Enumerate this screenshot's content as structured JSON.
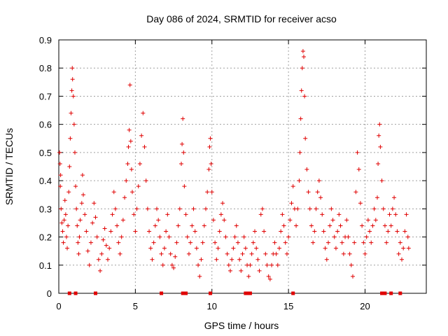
{
  "chart_data": {
    "type": "scatter",
    "title": "Day 086 of 2024, SRMTID for receiver acso",
    "xlabel": "GPS time / hours",
    "ylabel": "SRMTID / TECUs",
    "xlim": [
      0,
      24
    ],
    "ylim": [
      0,
      0.9
    ],
    "xticks": [
      0,
      5,
      10,
      15,
      20
    ],
    "xtick_labels": [
      "0",
      "5",
      "10",
      "15",
      "20"
    ],
    "yticks": [
      0,
      0.1,
      0.2,
      0.3,
      0.4,
      0.5,
      0.6,
      0.7,
      0.8,
      0.9
    ],
    "ytick_labels": [
      "0",
      "0.1",
      "0.2",
      "0.3",
      "0.4",
      "0.5",
      "0.6",
      "0.7",
      "0.8",
      "0.9"
    ],
    "grid": true,
    "marker": "+",
    "color": "#e00000",
    "series": [
      {
        "name": "SRMTID",
        "points": [
          [
            0.05,
            0.5
          ],
          [
            0.08,
            0.46
          ],
          [
            0.1,
            0.38
          ],
          [
            0.12,
            0.42
          ],
          [
            0.15,
            0.3
          ],
          [
            0.2,
            0.25
          ],
          [
            0.25,
            0.22
          ],
          [
            0.3,
            0.18
          ],
          [
            0.35,
            0.26
          ],
          [
            0.4,
            0.33
          ],
          [
            0.45,
            0.28
          ],
          [
            0.5,
            0.2
          ],
          [
            0.55,
            0.16
          ],
          [
            0.6,
            0.24
          ],
          [
            0.65,
            0.36
          ],
          [
            0.7,
            0.45
          ],
          [
            0.75,
            0.55
          ],
          [
            0.8,
            0.64
          ],
          [
            0.85,
            0.72
          ],
          [
            0.88,
            0.8
          ],
          [
            0.9,
            0.76
          ],
          [
            0.95,
            0.7
          ],
          [
            1.0,
            0.6
          ],
          [
            1.05,
            0.5
          ],
          [
            1.1,
            0.38
          ],
          [
            1.15,
            0.3
          ],
          [
            1.2,
            0.24
          ],
          [
            1.25,
            0.18
          ],
          [
            1.3,
            0.14
          ],
          [
            1.35,
            0.2
          ],
          [
            1.4,
            0.26
          ],
          [
            1.5,
            0.32
          ],
          [
            1.55,
            0.42
          ],
          [
            1.6,
            0.35
          ],
          [
            1.7,
            0.28
          ],
          [
            1.8,
            0.22
          ],
          [
            1.9,
            0.15
          ],
          [
            2.0,
            0.1
          ],
          [
            2.1,
            0.18
          ],
          [
            2.2,
            0.25
          ],
          [
            2.3,
            0.32
          ],
          [
            2.4,
            0.27
          ],
          [
            2.5,
            0.2
          ],
          [
            2.6,
            0.12
          ],
          [
            2.7,
            0.08
          ],
          [
            2.8,
            0.14
          ],
          [
            2.9,
            0.19
          ],
          [
            3.0,
            0.23
          ],
          [
            3.1,
            0.17
          ],
          [
            3.2,
            0.12
          ],
          [
            3.3,
            0.16
          ],
          [
            3.4,
            0.22
          ],
          [
            3.5,
            0.28
          ],
          [
            3.6,
            0.36
          ],
          [
            3.7,
            0.3
          ],
          [
            3.8,
            0.24
          ],
          [
            3.9,
            0.18
          ],
          [
            4.0,
            0.14
          ],
          [
            4.1,
            0.2
          ],
          [
            4.2,
            0.26
          ],
          [
            4.3,
            0.34
          ],
          [
            4.4,
            0.4
          ],
          [
            4.5,
            0.46
          ],
          [
            4.55,
            0.52
          ],
          [
            4.6,
            0.58
          ],
          [
            4.65,
            0.74
          ],
          [
            4.7,
            0.54
          ],
          [
            4.75,
            0.44
          ],
          [
            4.8,
            0.36
          ],
          [
            4.9,
            0.28
          ],
          [
            5.0,
            0.22
          ],
          [
            5.1,
            0.3
          ],
          [
            5.2,
            0.38
          ],
          [
            5.3,
            0.46
          ],
          [
            5.4,
            0.56
          ],
          [
            5.5,
            0.64
          ],
          [
            5.6,
            0.52
          ],
          [
            5.7,
            0.4
          ],
          [
            5.8,
            0.3
          ],
          [
            5.9,
            0.22
          ],
          [
            6.0,
            0.16
          ],
          [
            6.1,
            0.12
          ],
          [
            6.2,
            0.18
          ],
          [
            6.3,
            0.24
          ],
          [
            6.4,
            0.3
          ],
          [
            6.5,
            0.26
          ],
          [
            6.6,
            0.2
          ],
          [
            6.7,
            0.14
          ],
          [
            6.8,
            0.1
          ],
          [
            6.9,
            0.16
          ],
          [
            7.0,
            0.22
          ],
          [
            7.1,
            0.28
          ],
          [
            7.2,
            0.2
          ],
          [
            7.3,
            0.14
          ],
          [
            7.4,
            0.1
          ],
          [
            7.5,
            0.09
          ],
          [
            7.6,
            0.13
          ],
          [
            7.7,
            0.18
          ],
          [
            7.8,
            0.24
          ],
          [
            7.9,
            0.3
          ],
          [
            8.0,
            0.46
          ],
          [
            8.05,
            0.53
          ],
          [
            8.1,
            0.62
          ],
          [
            8.15,
            0.5
          ],
          [
            8.2,
            0.38
          ],
          [
            8.3,
            0.28
          ],
          [
            8.4,
            0.2
          ],
          [
            8.5,
            0.14
          ],
          [
            8.6,
            0.18
          ],
          [
            8.7,
            0.24
          ],
          [
            8.8,
            0.3
          ],
          [
            8.9,
            0.22
          ],
          [
            9.0,
            0.16
          ],
          [
            9.1,
            0.1
          ],
          [
            9.2,
            0.06
          ],
          [
            9.3,
            0.12
          ],
          [
            9.4,
            0.18
          ],
          [
            9.5,
            0.24
          ],
          [
            9.6,
            0.3
          ],
          [
            9.7,
            0.36
          ],
          [
            9.8,
            0.44
          ],
          [
            9.85,
            0.52
          ],
          [
            9.9,
            0.55
          ],
          [
            9.95,
            0.46
          ],
          [
            10.0,
            0.36
          ],
          [
            10.1,
            0.26
          ],
          [
            10.2,
            0.18
          ],
          [
            10.3,
            0.12
          ],
          [
            10.4,
            0.16
          ],
          [
            10.5,
            0.22
          ],
          [
            10.6,
            0.28
          ],
          [
            10.7,
            0.32
          ],
          [
            10.8,
            0.26
          ],
          [
            10.9,
            0.2
          ],
          [
            11.0,
            0.14
          ],
          [
            11.1,
            0.1
          ],
          [
            11.2,
            0.08
          ],
          [
            11.3,
            0.12
          ],
          [
            11.4,
            0.16
          ],
          [
            11.5,
            0.2
          ],
          [
            11.6,
            0.24
          ],
          [
            11.7,
            0.18
          ],
          [
            11.8,
            0.12
          ],
          [
            11.9,
            0.08
          ],
          [
            12.0,
            0.14
          ],
          [
            12.1,
            0.2
          ],
          [
            12.2,
            0.16
          ],
          [
            12.3,
            0.1
          ],
          [
            12.4,
            0.06
          ],
          [
            12.5,
            0.1
          ],
          [
            12.6,
            0.14
          ],
          [
            12.7,
            0.18
          ],
          [
            12.8,
            0.22
          ],
          [
            12.9,
            0.16
          ],
          [
            13.0,
            0.12
          ],
          [
            13.1,
            0.08
          ],
          [
            13.2,
            0.28
          ],
          [
            13.3,
            0.3
          ],
          [
            13.4,
            0.22
          ],
          [
            13.5,
            0.14
          ],
          [
            13.6,
            0.1
          ],
          [
            13.7,
            0.06
          ],
          [
            13.8,
            0.05
          ],
          [
            13.9,
            0.1
          ],
          [
            14.0,
            0.14
          ],
          [
            14.1,
            0.18
          ],
          [
            14.2,
            0.14
          ],
          [
            14.3,
            0.1
          ],
          [
            14.4,
            0.16
          ],
          [
            14.5,
            0.22
          ],
          [
            14.6,
            0.28
          ],
          [
            14.7,
            0.24
          ],
          [
            14.8,
            0.18
          ],
          [
            14.9,
            0.14
          ],
          [
            15.0,
            0.2
          ],
          [
            15.1,
            0.26
          ],
          [
            15.2,
            0.32
          ],
          [
            15.3,
            0.38
          ],
          [
            15.4,
            0.3
          ],
          [
            15.5,
            0.24
          ],
          [
            15.6,
            0.3
          ],
          [
            15.7,
            0.4
          ],
          [
            15.75,
            0.5
          ],
          [
            15.8,
            0.62
          ],
          [
            15.85,
            0.72
          ],
          [
            15.9,
            0.8
          ],
          [
            15.95,
            0.86
          ],
          [
            16.0,
            0.84
          ],
          [
            16.05,
            0.7
          ],
          [
            16.1,
            0.55
          ],
          [
            16.2,
            0.44
          ],
          [
            16.3,
            0.36
          ],
          [
            16.4,
            0.3
          ],
          [
            16.5,
            0.24
          ],
          [
            16.6,
            0.18
          ],
          [
            16.7,
            0.22
          ],
          [
            16.8,
            0.3
          ],
          [
            16.9,
            0.36
          ],
          [
            17.0,
            0.4
          ],
          [
            17.1,
            0.34
          ],
          [
            17.2,
            0.28
          ],
          [
            17.3,
            0.22
          ],
          [
            17.4,
            0.16
          ],
          [
            17.5,
            0.12
          ],
          [
            17.6,
            0.18
          ],
          [
            17.7,
            0.24
          ],
          [
            17.8,
            0.3
          ],
          [
            17.9,
            0.26
          ],
          [
            18.0,
            0.2
          ],
          [
            18.1,
            0.16
          ],
          [
            18.2,
            0.22
          ],
          [
            18.3,
            0.28
          ],
          [
            18.4,
            0.24
          ],
          [
            18.5,
            0.18
          ],
          [
            18.6,
            0.14
          ],
          [
            18.7,
            0.2
          ],
          [
            18.8,
            0.26
          ],
          [
            18.9,
            0.2
          ],
          [
            19.0,
            0.14
          ],
          [
            19.1,
            0.1
          ],
          [
            19.2,
            0.06
          ],
          [
            19.3,
            0.18
          ],
          [
            19.4,
            0.36
          ],
          [
            19.5,
            0.5
          ],
          [
            19.6,
            0.44
          ],
          [
            19.7,
            0.32
          ],
          [
            19.8,
            0.24
          ],
          [
            19.9,
            0.18
          ],
          [
            20.0,
            0.14
          ],
          [
            20.1,
            0.2
          ],
          [
            20.2,
            0.26
          ],
          [
            20.3,
            0.22
          ],
          [
            20.4,
            0.18
          ],
          [
            20.5,
            0.24
          ],
          [
            20.6,
            0.3
          ],
          [
            20.7,
            0.26
          ],
          [
            20.8,
            0.34
          ],
          [
            20.85,
            0.46
          ],
          [
            20.9,
            0.56
          ],
          [
            20.95,
            0.6
          ],
          [
            21.0,
            0.52
          ],
          [
            21.1,
            0.4
          ],
          [
            21.2,
            0.3
          ],
          [
            21.3,
            0.24
          ],
          [
            21.4,
            0.18
          ],
          [
            21.5,
            0.22
          ],
          [
            21.6,
            0.28
          ],
          [
            21.7,
            0.24
          ],
          [
            21.8,
            0.3
          ],
          [
            21.9,
            0.34
          ],
          [
            22.0,
            0.28
          ],
          [
            22.1,
            0.22
          ],
          [
            22.2,
            0.14
          ],
          [
            22.3,
            0.18
          ],
          [
            22.4,
            0.12
          ],
          [
            22.5,
            0.16
          ],
          [
            22.6,
            0.22
          ],
          [
            22.7,
            0.28
          ],
          [
            22.8,
            0.2
          ],
          [
            22.85,
            0.16
          ]
        ]
      }
    ],
    "baseline_markers": [
      0.7,
      1.1,
      2.4,
      6.7,
      8.1,
      8.3,
      9.9,
      12.2,
      12.3,
      12.5,
      15.3,
      21.1,
      21.2,
      21.3,
      21.7,
      22.3
    ]
  }
}
